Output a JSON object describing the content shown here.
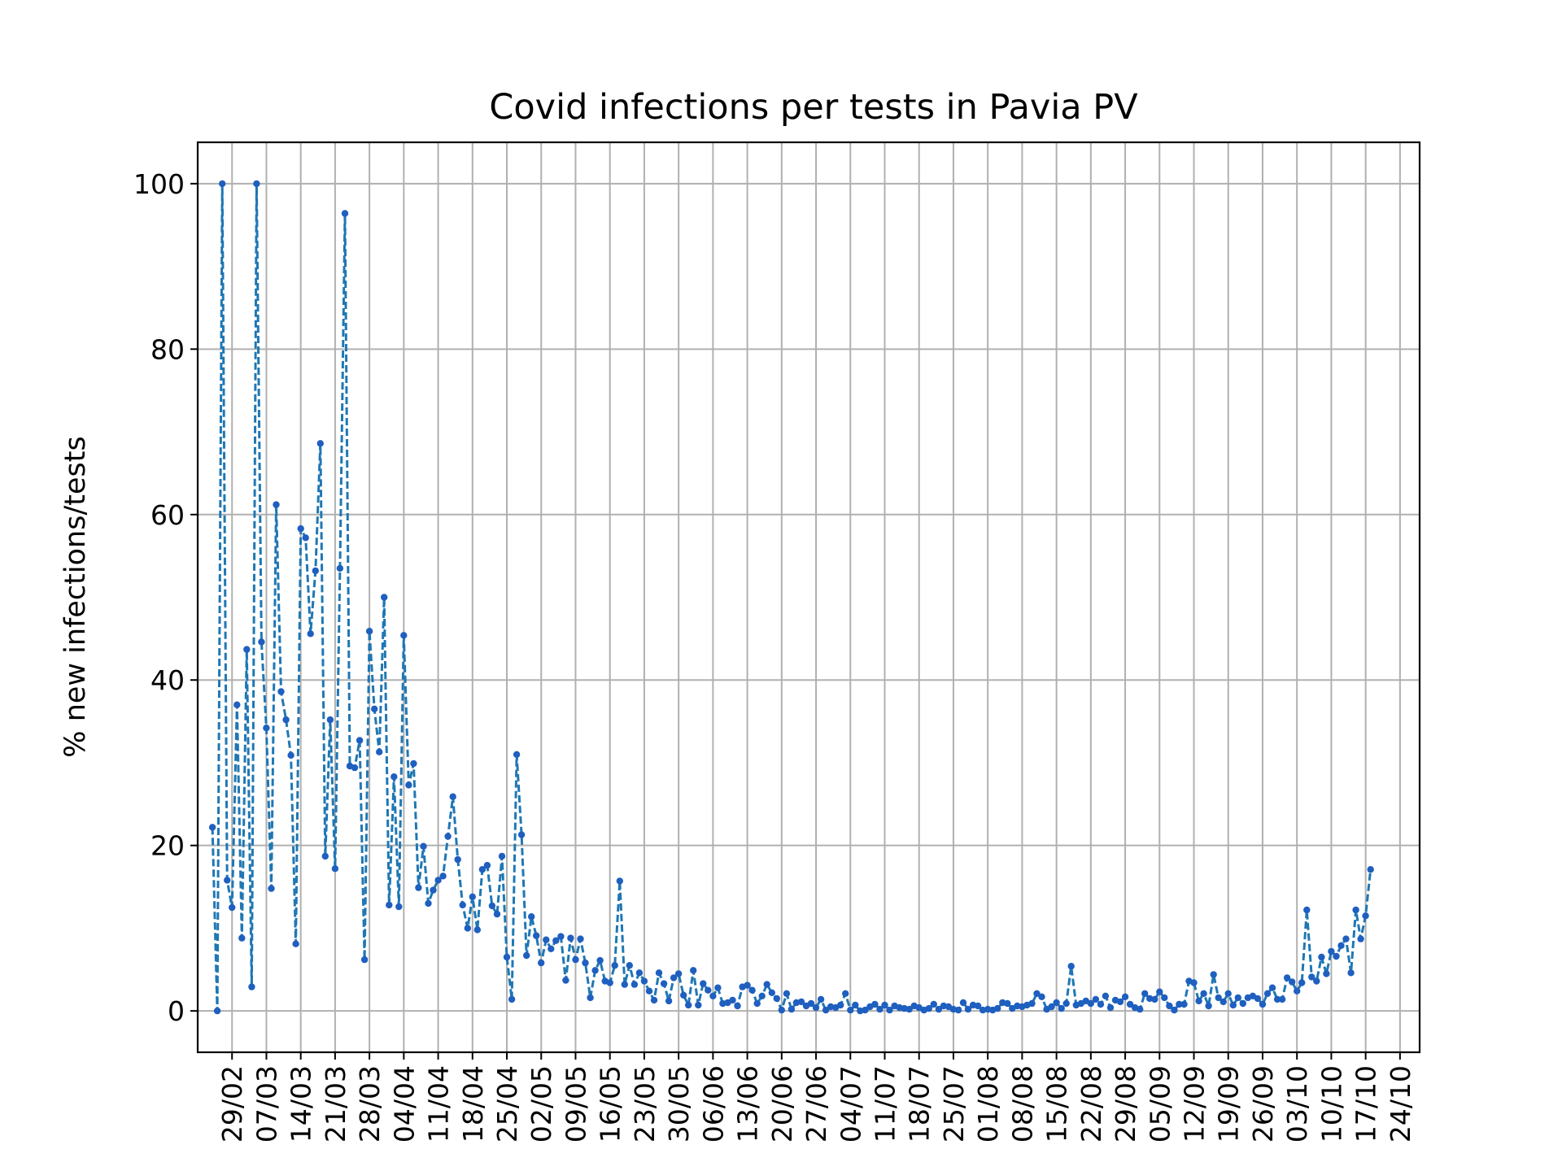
{
  "chart_data": {
    "type": "line",
    "title": "Covid infections per tests in Pavia PV",
    "xlabel": "",
    "ylabel": "% new infections/tests",
    "ylim": [
      -5,
      105
    ],
    "xlim": [
      "2020-02-22",
      "2020-10-28"
    ],
    "grid": true,
    "line_color": "#1f77b4",
    "marker_color": "#1f5fbf",
    "line_style": "dashed",
    "y_ticks": [
      0,
      20,
      40,
      60,
      80,
      100
    ],
    "x_ticks": [
      {
        "date": "2020-02-29",
        "label": "29/02"
      },
      {
        "date": "2020-03-07",
        "label": "07/03"
      },
      {
        "date": "2020-03-14",
        "label": "14/03"
      },
      {
        "date": "2020-03-21",
        "label": "21/03"
      },
      {
        "date": "2020-03-28",
        "label": "28/03"
      },
      {
        "date": "2020-04-04",
        "label": "04/04"
      },
      {
        "date": "2020-04-11",
        "label": "11/04"
      },
      {
        "date": "2020-04-18",
        "label": "18/04"
      },
      {
        "date": "2020-04-25",
        "label": "25/04"
      },
      {
        "date": "2020-05-02",
        "label": "02/05"
      },
      {
        "date": "2020-05-09",
        "label": "09/05"
      },
      {
        "date": "2020-05-16",
        "label": "16/05"
      },
      {
        "date": "2020-05-23",
        "label": "23/05"
      },
      {
        "date": "2020-05-30",
        "label": "30/05"
      },
      {
        "date": "2020-06-06",
        "label": "06/06"
      },
      {
        "date": "2020-06-13",
        "label": "13/06"
      },
      {
        "date": "2020-06-20",
        "label": "20/06"
      },
      {
        "date": "2020-06-27",
        "label": "27/06"
      },
      {
        "date": "2020-07-04",
        "label": "04/07"
      },
      {
        "date": "2020-07-11",
        "label": "11/07"
      },
      {
        "date": "2020-07-18",
        "label": "18/07"
      },
      {
        "date": "2020-07-25",
        "label": "25/07"
      },
      {
        "date": "2020-08-01",
        "label": "01/08"
      },
      {
        "date": "2020-08-08",
        "label": "08/08"
      },
      {
        "date": "2020-08-15",
        "label": "15/08"
      },
      {
        "date": "2020-08-22",
        "label": "22/08"
      },
      {
        "date": "2020-08-29",
        "label": "29/08"
      },
      {
        "date": "2020-09-05",
        "label": "05/09"
      },
      {
        "date": "2020-09-12",
        "label": "12/09"
      },
      {
        "date": "2020-09-19",
        "label": "19/09"
      },
      {
        "date": "2020-09-26",
        "label": "26/09"
      },
      {
        "date": "2020-10-03",
        "label": "03/10"
      },
      {
        "date": "2020-10-10",
        "label": "10/10"
      },
      {
        "date": "2020-10-17",
        "label": "17/10"
      },
      {
        "date": "2020-10-24",
        "label": "24/10"
      }
    ],
    "series": [
      {
        "start_date": "2020-02-25",
        "values": [
          22.2,
          0,
          100,
          15.8,
          12.5,
          37,
          8.8,
          43.7,
          2.9,
          100,
          44.6,
          34.2,
          14.8,
          61.2,
          38.6,
          35.2,
          30.9,
          8.1,
          58.3,
          57.2,
          45.6,
          53.2,
          68.6,
          18.7,
          35.2,
          17.2,
          53.5,
          96.4,
          29.6,
          29.4,
          32.7,
          6.2,
          45.9,
          36.5,
          31.3,
          50,
          12.8,
          28.3,
          12.6,
          45.4,
          27.3,
          29.9,
          14.9,
          19.9,
          13,
          14.6,
          15.8,
          16.3,
          21.1,
          25.9,
          18.3,
          12.8,
          10,
          13.8,
          9.8,
          17.1,
          17.6,
          12.7,
          11.7,
          18.7,
          6.5,
          1.4,
          31,
          21.3,
          6.7,
          11.4,
          9.1,
          5.8,
          8.6,
          7.5,
          8.5,
          9,
          3.7,
          8.8,
          6.2,
          8.7,
          5.8,
          1.6,
          4.9,
          6.1,
          3.6,
          3.4,
          5.5,
          15.7,
          3.2,
          5.5,
          3.2,
          4.6,
          3.6,
          2.4,
          1.3,
          4.6,
          3.3,
          1.2,
          4,
          4.5,
          1.9,
          0.7,
          4.9,
          0.7,
          3.3,
          2.5,
          1.8,
          2.8,
          0.9,
          1,
          1.3,
          0.6,
          2.9,
          3.1,
          2.5,
          0.9,
          1.8,
          3.2,
          2.2,
          1.5,
          0.1,
          2.1,
          0.2,
          1,
          1.1,
          0.6,
          0.9,
          0.4,
          1.4,
          0.1,
          0.5,
          0.4,
          0.7,
          2.1,
          0.1,
          0.7,
          0,
          0.1,
          0.5,
          0.8,
          0.2,
          0.7,
          0.1,
          0.6,
          0.4,
          0.3,
          0.2,
          0.6,
          0.4,
          0.1,
          0.3,
          0.8,
          0.2,
          0.6,
          0.5,
          0.2,
          0.1,
          1,
          0.2,
          0.7,
          0.6,
          0.1,
          0.2,
          0.1,
          0.3,
          1,
          0.9,
          0.3,
          0.6,
          0.5,
          0.7,
          0.9,
          2.1,
          1.7,
          0.2,
          0.5,
          1,
          0.3,
          0.9,
          5.4,
          0.7,
          0.9,
          1.2,
          0.9,
          1.4,
          0.8,
          1.8,
          0.4,
          1.3,
          1.1,
          1.7,
          0.8,
          0.4,
          0.2,
          2.1,
          1.5,
          1.4,
          2.3,
          1.6,
          0.6,
          0.1,
          0.8,
          0.8,
          3.6,
          3.4,
          1.2,
          2.1,
          0.6,
          4.4,
          1.6,
          1.1,
          2.1,
          0.7,
          1.6,
          0.9,
          1.6,
          1.8,
          1.5,
          0.8,
          2.1,
          2.8,
          1.4,
          1.4,
          4,
          3.5,
          2.4,
          3.4,
          12.2,
          4.1,
          3.6,
          6.5,
          4.5,
          7.2,
          6.6,
          7.9,
          8.7,
          4.6,
          12.2,
          8.7,
          11.5,
          17.1
        ]
      }
    ]
  }
}
